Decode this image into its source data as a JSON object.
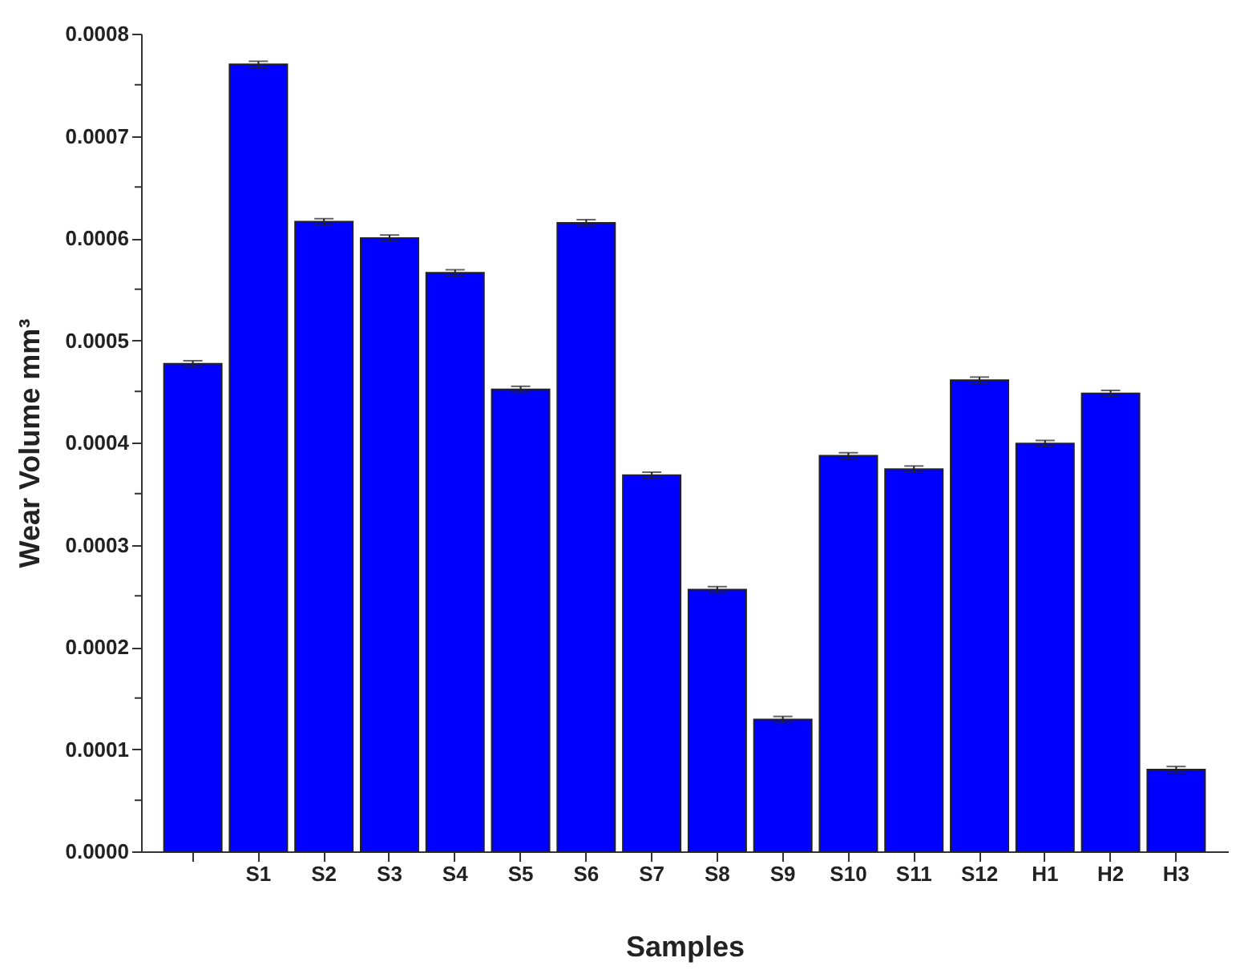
{
  "chart_data": {
    "type": "bar",
    "xlabel": "Samples",
    "ylabel": "Wear Volume mm³",
    "categories": [
      null,
      "S1",
      "S2",
      "S3",
      "S4",
      "S5",
      "S6",
      "S7",
      "S8",
      "S9",
      "S10",
      "S11",
      "S12",
      "H1",
      "H2",
      "H3"
    ],
    "values": [
      0.000477,
      0.00077,
      0.000616,
      0.0006,
      0.000566,
      0.000452,
      0.000615,
      0.000368,
      0.000256,
      0.000129,
      0.000387,
      0.000374,
      0.000461,
      0.000399,
      0.000448,
      8e-05
    ],
    "errors": [
      3e-06,
      3e-06,
      3e-06,
      3e-06,
      3e-06,
      3e-06,
      3e-06,
      3e-06,
      3e-06,
      3e-06,
      3e-06,
      3e-06,
      3e-06,
      3e-06,
      3e-06,
      3e-06
    ],
    "color": "#0000ff",
    "ylim": [
      0,
      0.0008
    ],
    "yticks": [
      {
        "value": 0,
        "label": "0.0000"
      },
      {
        "value": 5e-05,
        "label": null
      },
      {
        "value": 0.0001,
        "label": "0.0001"
      },
      {
        "value": 0.00015,
        "label": null
      },
      {
        "value": 0.0002,
        "label": "0.0002"
      },
      {
        "value": 0.00025,
        "label": null
      },
      {
        "value": 0.0003,
        "label": "0.0003"
      },
      {
        "value": 0.00035,
        "label": null
      },
      {
        "value": 0.0004,
        "label": "0.0004"
      },
      {
        "value": 0.00045,
        "label": null
      },
      {
        "value": 0.0005,
        "label": "0.0005"
      },
      {
        "value": 0.00055,
        "label": null
      },
      {
        "value": 0.0006,
        "label": "0.0006"
      },
      {
        "value": 0.00065,
        "label": null
      },
      {
        "value": 0.0007,
        "label": "0.0007"
      },
      {
        "value": 0.00075,
        "label": null
      },
      {
        "value": 0.0008,
        "label": "0.0008"
      }
    ],
    "grid": false
  }
}
